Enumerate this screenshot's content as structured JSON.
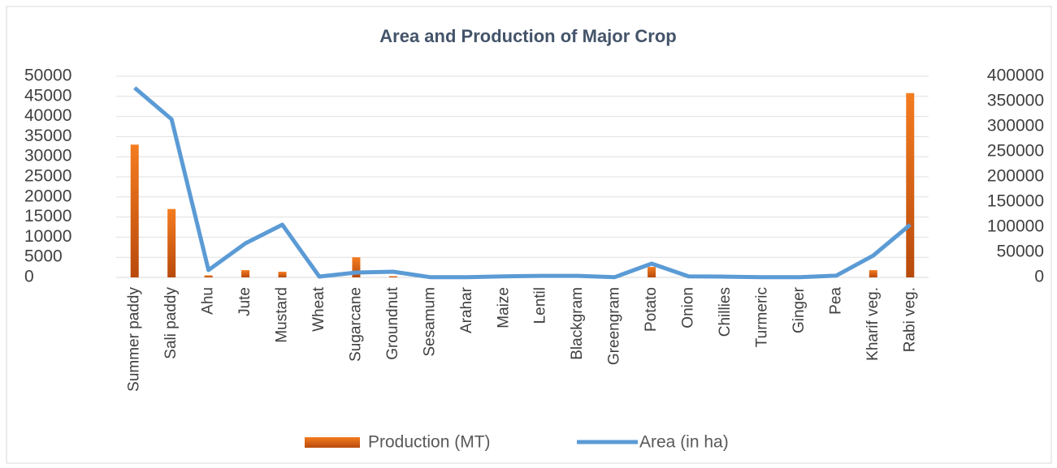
{
  "chart_data": {
    "type": "bar_line",
    "title": "Area and Production of Major Crop",
    "categories": [
      "Summer paddy",
      "Sali paddy",
      "Ahu",
      "Jute",
      "Mustard",
      "Wheat",
      "Sugarcane",
      "Groundnut",
      "Sesamum",
      "Arahar",
      "Maize",
      "Lentil",
      "Blackgram",
      "Greengram",
      "Potato",
      "Onion",
      "Chillies",
      "Turmeric",
      "Ginger",
      "Pea",
      "Kharif veg.",
      "Rabi veg."
    ],
    "series": [
      {
        "name": "Production (MT)",
        "type": "bar",
        "color": "#f47c20",
        "axis": "y",
        "values": [
          33000,
          17000,
          500,
          1800,
          1400,
          0,
          5000,
          300,
          0,
          0,
          0,
          0,
          0,
          0,
          2600,
          0,
          0,
          0,
          0,
          0,
          1800,
          45800
        ]
      },
      {
        "name": "Area (in ha)",
        "type": "line",
        "color": "#5b9bd5",
        "axis": "y2",
        "values": [
          377000,
          314500,
          14500,
          67700,
          104800,
          1600,
          9700,
          11300,
          500,
          500,
          2000,
          3000,
          3000,
          500,
          27400,
          2000,
          1500,
          500,
          500,
          3500,
          43500,
          104800
        ]
      }
    ],
    "ylim": [
      0,
      50000
    ],
    "yticks": [
      0,
      5000,
      10000,
      15000,
      20000,
      25000,
      30000,
      35000,
      40000,
      45000,
      50000
    ],
    "y2lim": [
      0,
      400000
    ],
    "y2ticks": [
      0,
      50000,
      100000,
      150000,
      200000,
      250000,
      300000,
      350000,
      400000
    ],
    "grid": true,
    "legend": "bottom"
  }
}
